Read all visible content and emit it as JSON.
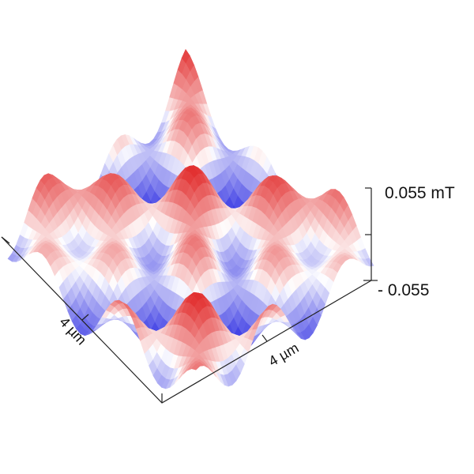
{
  "chart_data": {
    "type": "surface",
    "title": "",
    "x_axis": {
      "label": "4 µm"
    },
    "y_axis": {
      "label": "4 µm"
    },
    "z_axis": {
      "max_label": "0.055 mT",
      "min_label": "- 0.055",
      "range": [
        -0.055,
        0.055
      ],
      "unit": "mT"
    },
    "colormap": {
      "low": "#2020e0",
      "mid": "#ffffff",
      "high": "#e02020"
    },
    "field": {
      "description": "periodic magnetic field pattern",
      "kx_cycles": 2.4,
      "ky_cycles": 2.4,
      "amplitude": 0.055
    },
    "grid": false,
    "legend": "none"
  }
}
